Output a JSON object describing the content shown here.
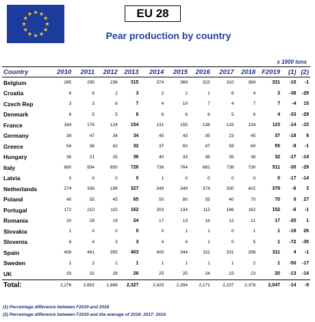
{
  "header": {
    "badge": "EU 28",
    "subtitle": "Pear production by country",
    "units": "x 1000 tons"
  },
  "columns": [
    "Country",
    "2010",
    "2011",
    "2012",
    "2013",
    "2014",
    "2015",
    "2016",
    "2017",
    "2018",
    "F2019",
    "(1)",
    "(2)"
  ],
  "rows": [
    [
      "Belgium",
      "285",
      "295",
      "236",
      "315",
      "374",
      "369",
      "322",
      "310",
      "369",
      "331",
      "-10",
      "-1"
    ],
    [
      "Croatia",
      "6",
      "6",
      "2",
      "3",
      "2",
      "2",
      "1",
      "6",
      "4",
      "3",
      "-38",
      "-29"
    ],
    [
      "Czech Rep",
      "3",
      "3",
      "6",
      "7",
      "4",
      "10",
      "7",
      "4",
      "7",
      "7",
      "-4",
      "15"
    ],
    [
      "Denmark",
      "6",
      "5",
      "5",
      "6",
      "6",
      "6",
      "6",
      "5",
      "6",
      "4",
      "-33",
      "-29"
    ],
    [
      "France",
      "164",
      "176",
      "124",
      "154",
      "131",
      "155",
      "138",
      "133",
      "134",
      "115",
      "-14",
      "-15"
    ],
    [
      "Germany",
      "39",
      "47",
      "34",
      "34",
      "45",
      "43",
      "35",
      "23",
      "45",
      "37",
      "-18",
      "8"
    ],
    [
      "Greece",
      "54",
      "36",
      "42",
      "32",
      "37",
      "60",
      "47",
      "59",
      "60",
      "55",
      "-8",
      "-1"
    ],
    [
      "Hungary",
      "36",
      "21",
      "25",
      "36",
      "40",
      "33",
      "38",
      "35",
      "38",
      "32",
      "-17",
      "-14"
    ],
    [
      "Italy",
      "680",
      "934",
      "650",
      "726",
      "736",
      "764",
      "681",
      "738",
      "730",
      "511",
      "-30",
      "-29"
    ],
    [
      "Latvia",
      "0",
      "0",
      "0",
      "0",
      "1",
      "0",
      "0",
      "0",
      "0",
      "0",
      "-17",
      "-14"
    ],
    [
      "Netherlands",
      "274",
      "336",
      "199",
      "327",
      "349",
      "349",
      "374",
      "330",
      "402",
      "379",
      "-6",
      "3"
    ],
    [
      "Poland",
      "40",
      "55",
      "45",
      "65",
      "50",
      "80",
      "55",
      "40",
      "70",
      "70",
      "0",
      "27"
    ],
    [
      "Portugal",
      "172",
      "210",
      "115",
      "162",
      "203",
      "134",
      "113",
      "186",
      "162",
      "152",
      "-6",
      "-1"
    ],
    [
      "Romania",
      "20",
      "28",
      "19",
      "24",
      "17",
      "13",
      "16",
      "12",
      "21",
      "17",
      "-20",
      "1"
    ],
    [
      "Slovakia",
      "1",
      "0",
      "0",
      "0",
      "0",
      "1",
      "1",
      "0",
      "1",
      "1",
      "-19",
      "26"
    ],
    [
      "Slovenia",
      "6",
      "4",
      "3",
      "3",
      "4",
      "4",
      "1",
      "0",
      "5",
      "1",
      "-72",
      "-35"
    ],
    [
      "Spain",
      "456",
      "461",
      "355",
      "403",
      "400",
      "344",
      "311",
      "331",
      "298",
      "311",
      "4",
      "-1"
    ],
    [
      "Sweden",
      "1",
      "2",
      "1",
      "1",
      "1",
      "1",
      "1",
      "1",
      "2",
      "1",
      "-50",
      "-17"
    ],
    [
      "UK",
      "33",
      "32",
      "28",
      "26",
      "25",
      "25",
      "24",
      "23",
      "23",
      "20",
      "-13",
      "-14"
    ]
  ],
  "total": [
    "Total:",
    "2,276",
    "2,652",
    "1,888",
    "2,327",
    "2,425",
    "2,394",
    "2,171",
    "2,237",
    "2,378",
    "2,047",
    "-14",
    "-9"
  ],
  "footnotes": [
    "(1) Percentage difference between F2019 and 2018",
    "(2) Percentage difference between F2019 and the average of 2018- 2017- 2016"
  ]
}
